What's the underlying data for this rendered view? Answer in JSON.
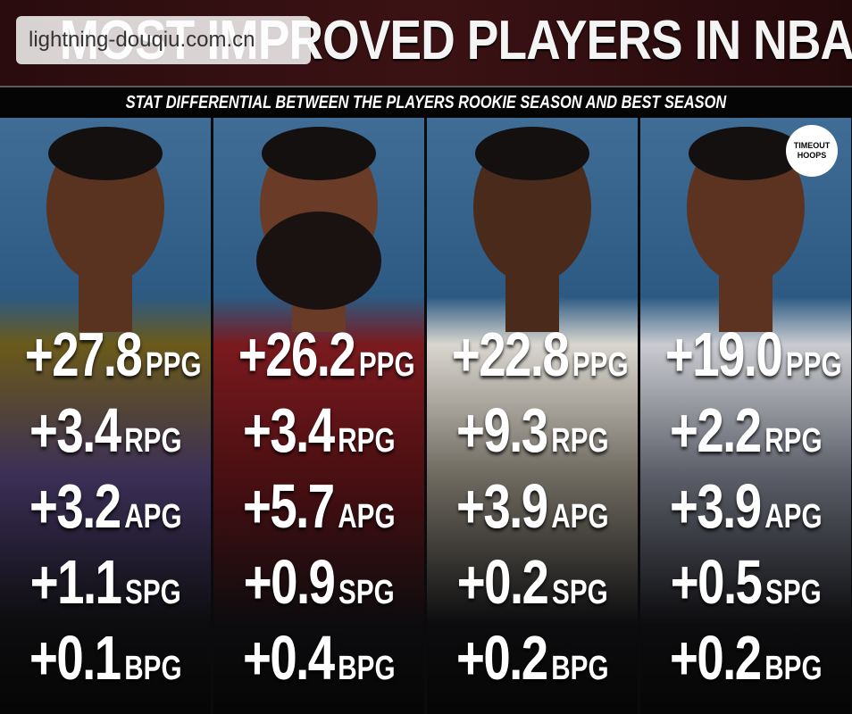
{
  "header": {
    "title": "MOST IMPROVED PLAYERS IN NBA HISTORY",
    "subtitle": "STAT DIFFERENTIAL BETWEEN THE PLAYERS ROOKIE SEASON AND BEST SEASON"
  },
  "watermark": "lightning-douqiu.com.cn",
  "logo": "TIMEOUT HOOPS",
  "columns": [
    {
      "stats": [
        {
          "value": "+27.8",
          "unit": "PPG"
        },
        {
          "value": "+3.4",
          "unit": "RPG"
        },
        {
          "value": "+3.2",
          "unit": "APG"
        },
        {
          "value": "+1.1",
          "unit": "SPG"
        },
        {
          "value": "+0.1",
          "unit": "BPG"
        }
      ]
    },
    {
      "stats": [
        {
          "value": "+26.2",
          "unit": "PPG"
        },
        {
          "value": "+3.4",
          "unit": "RPG"
        },
        {
          "value": "+5.7",
          "unit": "APG"
        },
        {
          "value": "+0.9",
          "unit": "SPG"
        },
        {
          "value": "+0.4",
          "unit": "BPG"
        }
      ]
    },
    {
      "stats": [
        {
          "value": "+22.8",
          "unit": "PPG"
        },
        {
          "value": "+9.3",
          "unit": "RPG"
        },
        {
          "value": "+3.9",
          "unit": "APG"
        },
        {
          "value": "+0.2",
          "unit": "SPG"
        },
        {
          "value": "+0.2",
          "unit": "BPG"
        }
      ]
    },
    {
      "stats": [
        {
          "value": "+19.0",
          "unit": "PPG"
        },
        {
          "value": "+2.2",
          "unit": "RPG"
        },
        {
          "value": "+3.9",
          "unit": "APG"
        },
        {
          "value": "+0.5",
          "unit": "SPG"
        },
        {
          "value": "+0.2",
          "unit": "BPG"
        }
      ]
    }
  ]
}
